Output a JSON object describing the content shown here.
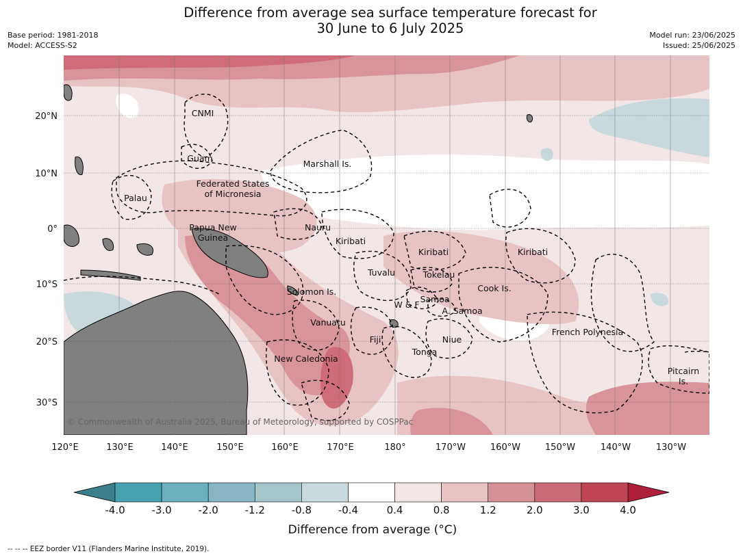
{
  "header": {
    "title_line1": "Difference from average sea surface temperature forecast for",
    "title_line2": "30 June to 6 July 2025",
    "base_period": "Base period: 1981-2018",
    "model": "Model: ACCESS-S2",
    "model_run": "Model run: 23/06/2025",
    "issued": "Issued: 25/06/2025"
  },
  "map": {
    "lon_ticks": [
      "120°E",
      "130°E",
      "140°E",
      "150°E",
      "160°E",
      "170°E",
      "180°",
      "170°W",
      "160°W",
      "150°W",
      "140°W",
      "130°W"
    ],
    "lat_ticks": [
      "20°N",
      "10°N",
      "0°",
      "10°S",
      "20°S",
      "30°S"
    ],
    "labels": {
      "cnmi": "CNMI",
      "guam": "Guam",
      "marshall": "Marshall Is.",
      "fsm1": "Federated States",
      "fsm2": "of Micronesia",
      "palau": "Palau",
      "png1": "Papua New",
      "png2": "Guinea",
      "nauru": "Nauru",
      "kiribati_w": "Kiribati",
      "kiribati_c": "Kiribati",
      "kiribati_e": "Kiribati",
      "tuvalu": "Tuvalu",
      "tokelau": "Tokelau",
      "solomon": "Solomon Is.",
      "wf": "W & F",
      "samoa": "Samoa",
      "asamoa": "A. Samoa",
      "cook": "Cook Is.",
      "vanuatu": "Vanuatu",
      "fiji": "Fiji",
      "niue": "Niue",
      "tonga": "Tonga",
      "new_caledonia": "New Caledonia",
      "french_polynesia": "French Polynesia",
      "pitcairn1": "Pitcairn",
      "pitcairn2": "Is."
    },
    "copyright": "© Commonwealth of Australia 2025, Bureau of Meteorology, supported by COSPPac",
    "colors": {
      "land": "#808080",
      "ocean_neutral": "#ffffff",
      "warm_light": "#f3e6e6",
      "warm_mid": "#e8c3c3",
      "warm_strong": "#d8939b",
      "warm_hot": "#ce6d79",
      "cool_light": "#c9d8dd"
    }
  },
  "colorbar": {
    "label": "Difference from average (°C)",
    "ticks": [
      "-4.0",
      "-3.0",
      "-2.0",
      "-1.2",
      "-0.8",
      "-0.4",
      "0.4",
      "0.8",
      "1.2",
      "2.0",
      "3.0",
      "4.0"
    ],
    "bin_colors": [
      "#48a0b3",
      "#6ab0bf",
      "#87b5c1",
      "#a6c6cc",
      "#c9d8dc",
      "#ffffff",
      "#f4e6e6",
      "#e6c3c2",
      "#d58f97",
      "#c96a76",
      "#bf4454"
    ],
    "under_color": "#3b7f8b",
    "over_color": "#ae1f3b"
  },
  "footer": {
    "legend": "--  --  -- EEZ border V11 (Flanders Marine Institute, 2019)."
  }
}
